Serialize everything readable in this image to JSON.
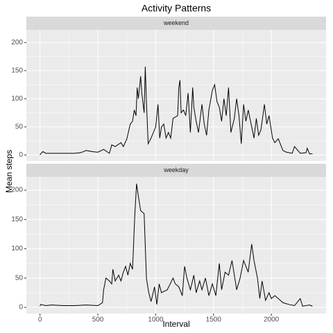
{
  "title": "Activity Patterns",
  "xlabel": "Interval",
  "ylabel": "Mean steps",
  "chart_data": [
    {
      "type": "line",
      "facet": "weekend",
      "color": "#000000",
      "grid": true,
      "x": [
        0,
        5,
        25,
        50,
        100,
        200,
        300,
        350,
        400,
        450,
        500,
        550,
        600,
        620,
        650,
        700,
        720,
        750,
        780,
        800,
        815,
        830,
        840,
        850,
        870,
        880,
        900,
        910,
        920,
        935,
        960,
        1000,
        1020,
        1035,
        1050,
        1070,
        1090,
        1110,
        1130,
        1150,
        1190,
        1200,
        1210,
        1220,
        1240,
        1260,
        1280,
        1300,
        1320,
        1330,
        1350,
        1370,
        1400,
        1420,
        1440,
        1460,
        1490,
        1510,
        1530,
        1550,
        1570,
        1590,
        1610,
        1630,
        1650,
        1680,
        1700,
        1720,
        1740,
        1760,
        1780,
        1800,
        1830,
        1850,
        1870,
        1890,
        1910,
        1940,
        1960,
        1980,
        2010,
        2030,
        2060,
        2100,
        2130,
        2180,
        2200,
        2250,
        2300,
        2310,
        2330,
        2355
      ],
      "values": [
        0,
        2,
        6,
        3,
        3,
        3,
        3,
        4,
        8,
        6,
        5,
        10,
        3,
        18,
        15,
        22,
        15,
        28,
        55,
        60,
        80,
        70,
        120,
        100,
        140,
        110,
        75,
        157,
        95,
        20,
        30,
        50,
        90,
        30,
        50,
        55,
        30,
        40,
        30,
        65,
        70,
        120,
        133,
        75,
        80,
        70,
        110,
        40,
        120,
        85,
        60,
        40,
        90,
        55,
        35,
        80,
        115,
        125,
        95,
        85,
        60,
        100,
        70,
        120,
        40,
        65,
        100,
        70,
        20,
        90,
        60,
        80,
        50,
        30,
        65,
        35,
        45,
        90,
        55,
        70,
        30,
        22,
        29,
        8,
        5,
        3,
        15,
        3,
        4,
        12,
        2,
        2
      ],
      "xlim": [
        -118,
        2473
      ],
      "ylim": [
        -10.6,
        222.6
      ],
      "xticks": [
        0,
        500,
        1000,
        1500,
        2000
      ],
      "yticks": [
        0,
        50,
        100,
        150,
        200
      ]
    },
    {
      "type": "line",
      "facet": "weekday",
      "color": "#000000",
      "grid": true,
      "x": [
        0,
        5,
        50,
        100,
        200,
        300,
        400,
        500,
        540,
        550,
        570,
        600,
        620,
        630,
        650,
        680,
        700,
        720,
        740,
        760,
        780,
        800,
        820,
        835,
        850,
        870,
        900,
        920,
        940,
        960,
        990,
        1010,
        1030,
        1050,
        1100,
        1150,
        1170,
        1200,
        1230,
        1250,
        1270,
        1300,
        1330,
        1350,
        1380,
        1400,
        1430,
        1460,
        1490,
        1520,
        1550,
        1570,
        1600,
        1630,
        1660,
        1700,
        1730,
        1760,
        1800,
        1830,
        1850,
        1880,
        1900,
        1920,
        1950,
        1980,
        2000,
        2030,
        2060,
        2100,
        2150,
        2200,
        2250,
        2270,
        2330,
        2355
      ],
      "values": [
        2,
        5,
        3,
        4,
        3,
        3,
        4,
        3,
        8,
        30,
        50,
        45,
        40,
        65,
        45,
        55,
        45,
        60,
        70,
        55,
        75,
        65,
        160,
        211,
        190,
        165,
        160,
        50,
        25,
        10,
        35,
        5,
        40,
        25,
        30,
        50,
        40,
        35,
        20,
        70,
        50,
        30,
        55,
        25,
        45,
        30,
        50,
        20,
        40,
        20,
        75,
        30,
        60,
        55,
        80,
        30,
        50,
        80,
        60,
        108,
        80,
        50,
        15,
        45,
        12,
        25,
        15,
        20,
        15,
        8,
        5,
        3,
        15,
        2,
        4,
        2
      ],
      "xlim": [
        -118,
        2473
      ],
      "ylim": [
        -10.6,
        222.6
      ],
      "xticks": [
        0,
        500,
        1000,
        1500,
        2000
      ],
      "yticks": [
        0,
        50,
        100,
        150,
        200
      ]
    }
  ]
}
